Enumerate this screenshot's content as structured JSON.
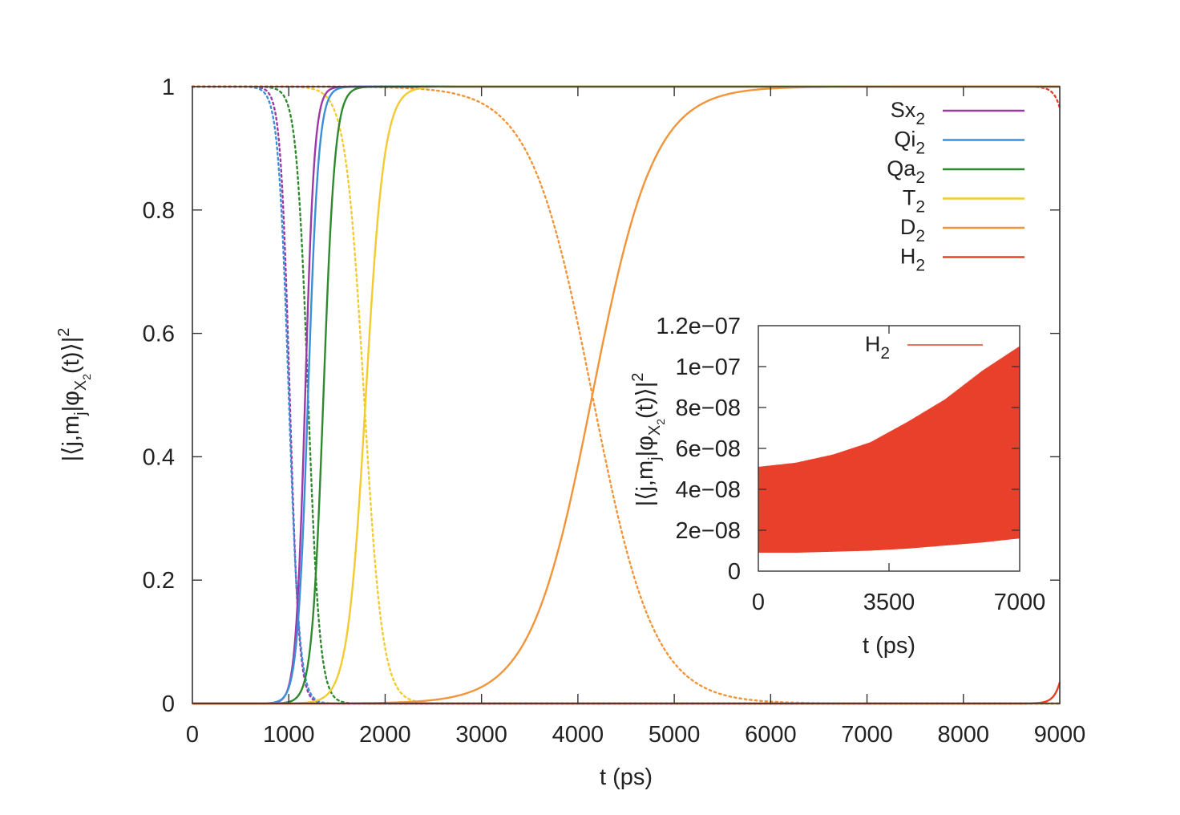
{
  "chart_data": [
    {
      "type": "line",
      "xlabel": "t (ps)",
      "ylabel": "|⟨j,m_j|φ_{X_2}(t)⟩|^2",
      "xlim": [
        0,
        9000
      ],
      "ylim": [
        0,
        1
      ],
      "x_ticks": [
        "0",
        "1000",
        "2000",
        "3000",
        "4000",
        "5000",
        "6000",
        "7000",
        "8000",
        "9000"
      ],
      "y_ticks": [
        "0",
        "0.2",
        "0.4",
        "0.6",
        "0.8",
        "1"
      ],
      "legend_position": "top-right",
      "grid": false,
      "style_note": "solid line = rising population, dotted line = decaying population",
      "series": [
        {
          "name": "Sx2",
          "color": "#9b3aa6",
          "rise_midpoint_ps": 1170,
          "decay_midpoint_ps": 1010,
          "rise_width_ps": 48,
          "decay_width_ps": 48
        },
        {
          "name": "Qi2",
          "color": "#3b8fd9",
          "rise_midpoint_ps": 1200,
          "decay_midpoint_ps": 1000,
          "rise_width_ps": 55,
          "decay_width_ps": 55
        },
        {
          "name": "Qa2",
          "color": "#2f8a2f",
          "rise_midpoint_ps": 1360,
          "decay_midpoint_ps": 1200,
          "rise_width_ps": 60,
          "decay_width_ps": 60
        },
        {
          "name": "T2",
          "color": "#f2cb31",
          "rise_midpoint_ps": 1800,
          "decay_midpoint_ps": 1780,
          "rise_width_ps": 95,
          "decay_width_ps": 95
        },
        {
          "name": "D2",
          "color": "#f2953a",
          "rise_midpoint_ps": 4150,
          "decay_midpoint_ps": 4150,
          "rise_width_ps": 320,
          "decay_width_ps": 320
        },
        {
          "name": "H2",
          "color": "#e8402a",
          "rise_midpoint_ps": 9200,
          "decay_midpoint_ps": 9200,
          "rise_width_ps": 60,
          "decay_width_ps": 60
        }
      ]
    },
    {
      "type": "line",
      "inset": true,
      "xlabel": "t (ps)",
      "ylabel": "|⟨j,m_j|φ_{X_2}(t)⟩|^2",
      "xlim": [
        0,
        7000
      ],
      "ylim": [
        0,
        1.2e-07
      ],
      "x_ticks": [
        "0",
        "3500",
        "7000"
      ],
      "y_ticks": [
        "0",
        "2e−08",
        "4e−08",
        "6e−08",
        "8e−08",
        "1e−07",
        "1.2e−07"
      ],
      "legend_position": "top",
      "series": [
        {
          "name": "H2",
          "color": "#e8402a",
          "envelope_t": [
            0,
            1000,
            2000,
            3000,
            3500,
            4000,
            5000,
            6000,
            6500,
            7000
          ],
          "envelope_max": [
            5.1e-08,
            5.3e-08,
            5.7e-08,
            6.3e-08,
            6.8e-08,
            7.3e-08,
            8.4e-08,
            9.8e-08,
            1.04e-07,
            1.1e-07
          ],
          "envelope_min": [
            9e-09,
            9e-09,
            9.5e-09,
            1e-08,
            1.05e-08,
            1.1e-08,
            1.25e-08,
            1.4e-08,
            1.5e-08,
            1.6e-08
          ]
        }
      ]
    }
  ]
}
